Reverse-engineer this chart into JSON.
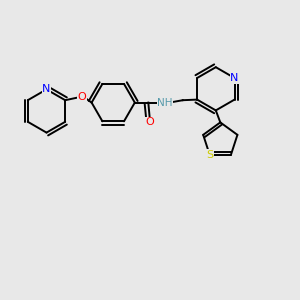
{
  "bg_color": "#e8e8e8",
  "bond_color": "#000000",
  "N_color": "#0000ff",
  "O_color": "#ff0000",
  "S_color": "#cccc00",
  "NH_color": "#5599aa",
  "lw": 1.4,
  "r_hex": 0.72,
  "r_pent": 0.6,
  "xlim": [
    0,
    10
  ],
  "ylim": [
    0,
    10
  ]
}
